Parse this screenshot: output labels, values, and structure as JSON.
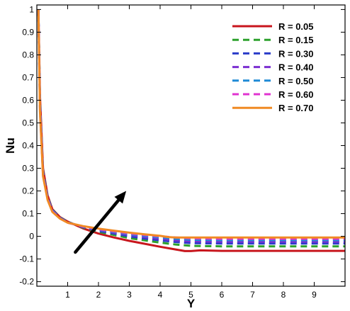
{
  "chart_data": {
    "type": "line",
    "xlabel": "Y",
    "ylabel": "Nu",
    "xlim": [
      0,
      10
    ],
    "ylim": [
      -0.22,
      1.02
    ],
    "xticks": [
      1,
      2,
      3,
      4,
      5,
      6,
      7,
      8,
      9
    ],
    "yticks": [
      -0.2,
      -0.1,
      0,
      0.1,
      0.2,
      0.3,
      0.4,
      0.5,
      0.6,
      0.7,
      0.8,
      0.9,
      1
    ],
    "ytick_labels": [
      "-0.2",
      "-0.1",
      "0",
      "0.1",
      "0.2",
      "0.3",
      "0.4",
      "0.5",
      "0.6",
      "0.7",
      "0.8",
      "0.9",
      "1"
    ],
    "grid": false,
    "legend_position": "top-right",
    "series": [
      {
        "name": "R = 0.05",
        "color": "#c8161d",
        "dash": "solid",
        "x": [
          0.05,
          0.1,
          0.2,
          0.35,
          0.5,
          0.75,
          1.0,
          1.5,
          2.0,
          2.5,
          3.0,
          3.5,
          4.0,
          4.5,
          4.8,
          5.0,
          5.3,
          6.0,
          7.0,
          8.0,
          9.0,
          10.0
        ],
        "y": [
          1.0,
          0.62,
          0.3,
          0.18,
          0.12,
          0.085,
          0.065,
          0.035,
          0.012,
          -0.005,
          -0.02,
          -0.033,
          -0.046,
          -0.058,
          -0.065,
          -0.065,
          -0.062,
          -0.064,
          -0.064,
          -0.064,
          -0.064,
          -0.064
        ]
      },
      {
        "name": "R = 0.15",
        "color": "#2ca12c",
        "dash": "dashed",
        "x": [
          0.05,
          0.1,
          0.2,
          0.35,
          0.5,
          0.75,
          1.0,
          1.5,
          2.0,
          2.5,
          3.0,
          3.5,
          4.0,
          4.5,
          5.0,
          6.0,
          7.0,
          8.0,
          9.0,
          10.0
        ],
        "y": [
          1.0,
          0.6,
          0.29,
          0.175,
          0.118,
          0.083,
          0.064,
          0.038,
          0.02,
          0.006,
          -0.008,
          -0.018,
          -0.028,
          -0.036,
          -0.042,
          -0.044,
          -0.044,
          -0.044,
          -0.044,
          -0.044
        ]
      },
      {
        "name": "R = 0.30",
        "color": "#2a3bc9",
        "dash": "dashed",
        "x": [
          0.05,
          0.1,
          0.2,
          0.35,
          0.5,
          0.75,
          1.0,
          1.5,
          2.0,
          2.5,
          3.0,
          3.5,
          4.0,
          4.5,
          5.0,
          6.0,
          7.0,
          8.0,
          9.0,
          10.0
        ],
        "y": [
          1.0,
          0.59,
          0.285,
          0.172,
          0.116,
          0.082,
          0.063,
          0.04,
          0.024,
          0.012,
          0.0,
          -0.01,
          -0.018,
          -0.025,
          -0.03,
          -0.032,
          -0.032,
          -0.032,
          -0.032,
          -0.032
        ]
      },
      {
        "name": "R = 0.40",
        "color": "#7b2fd1",
        "dash": "dashed",
        "x": [
          0.05,
          0.1,
          0.2,
          0.35,
          0.5,
          0.75,
          1.0,
          1.5,
          2.0,
          2.5,
          3.0,
          3.5,
          4.0,
          4.5,
          5.0,
          6.0,
          7.0,
          8.0,
          9.0,
          10.0
        ],
        "y": [
          1.0,
          0.58,
          0.28,
          0.17,
          0.114,
          0.081,
          0.062,
          0.041,
          0.027,
          0.016,
          0.006,
          -0.003,
          -0.011,
          -0.018,
          -0.022,
          -0.024,
          -0.024,
          -0.024,
          -0.024,
          -0.024
        ]
      },
      {
        "name": "R = 0.50",
        "color": "#1f8ad6",
        "dash": "dashed",
        "x": [
          0.05,
          0.1,
          0.2,
          0.35,
          0.5,
          0.75,
          1.0,
          1.5,
          2.0,
          2.5,
          3.0,
          3.5,
          4.0,
          4.5,
          5.0,
          6.0,
          7.0,
          8.0,
          9.0,
          10.0
        ],
        "y": [
          1.0,
          0.57,
          0.275,
          0.167,
          0.112,
          0.08,
          0.061,
          0.042,
          0.029,
          0.019,
          0.01,
          0.002,
          -0.005,
          -0.011,
          -0.015,
          -0.017,
          -0.017,
          -0.017,
          -0.017,
          -0.017
        ]
      },
      {
        "name": "R = 0.60",
        "color": "#e033d0",
        "dash": "dashed",
        "x": [
          0.05,
          0.1,
          0.2,
          0.35,
          0.5,
          0.75,
          1.0,
          1.5,
          2.0,
          2.5,
          3.0,
          3.5,
          4.0,
          4.5,
          5.0,
          6.0,
          7.0,
          8.0,
          9.0,
          10.0
        ],
        "y": [
          1.0,
          0.56,
          0.27,
          0.164,
          0.11,
          0.079,
          0.06,
          0.043,
          0.031,
          0.022,
          0.013,
          0.006,
          0.0,
          -0.005,
          -0.009,
          -0.011,
          -0.011,
          -0.011,
          -0.011,
          -0.011
        ]
      },
      {
        "name": "R = 0.70",
        "color": "#f08a24",
        "dash": "solid",
        "x": [
          0.05,
          0.1,
          0.2,
          0.35,
          0.5,
          0.75,
          1.0,
          1.5,
          2.0,
          2.5,
          3.0,
          3.5,
          4.0,
          4.3,
          4.5,
          5.0,
          6.0,
          7.0,
          8.0,
          9.0,
          10.0
        ],
        "y": [
          1.0,
          0.55,
          0.265,
          0.16,
          0.108,
          0.078,
          0.06,
          0.045,
          0.034,
          0.025,
          0.016,
          0.009,
          0.002,
          -0.004,
          -0.005,
          -0.005,
          -0.005,
          -0.005,
          -0.005,
          -0.005,
          -0.005
        ]
      }
    ],
    "annotations": [
      {
        "kind": "arrow",
        "from": [
          1.25,
          -0.07
        ],
        "to": [
          2.9,
          0.2
        ],
        "color": "#000000"
      }
    ]
  }
}
